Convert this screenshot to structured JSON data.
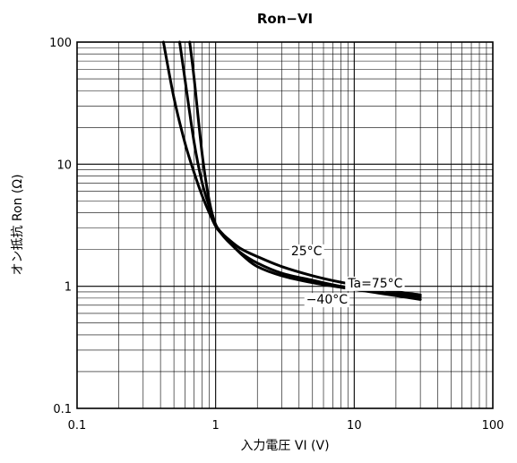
{
  "chart_data": {
    "type": "line",
    "title": "Ron−VI",
    "xlabel": "入力電圧 VI (V)",
    "ylabel": "オン抵抗 Ron (Ω)",
    "xscale": "log",
    "yscale": "log",
    "xlim": [
      0.1,
      100
    ],
    "ylim": [
      0.1,
      100
    ],
    "grid": true,
    "x_ticks": [
      {
        "value": 0.1,
        "label": "0.1"
      },
      {
        "value": 1,
        "label": "1"
      },
      {
        "value": 10,
        "label": "10"
      },
      {
        "value": 100,
        "label": "100"
      }
    ],
    "y_ticks": [
      {
        "value": 0.1,
        "label": "0.1"
      },
      {
        "value": 1,
        "label": "1"
      },
      {
        "value": 10,
        "label": "10"
      },
      {
        "value": 100,
        "label": "100"
      }
    ],
    "series": [
      {
        "name": "Ta=75°C",
        "x": [
          0.42,
          0.5,
          0.6,
          0.7,
          0.8,
          0.9,
          1.0,
          1.1,
          1.3,
          1.6,
          2,
          3,
          5,
          8,
          15,
          30
        ],
        "y": [
          100,
          35,
          15,
          8.5,
          5.5,
          4.0,
          3.1,
          2.7,
          2.2,
          1.75,
          1.45,
          1.22,
          1.07,
          0.98,
          0.88,
          0.78
        ]
      },
      {
        "name": "25°C",
        "x": [
          0.55,
          0.6,
          0.7,
          0.8,
          0.9,
          1.0,
          1.1,
          1.2,
          1.5,
          2,
          3,
          5,
          8,
          15,
          30
        ],
        "y": [
          100,
          50,
          15,
          7,
          4.5,
          3.2,
          2.75,
          2.5,
          2.05,
          1.75,
          1.45,
          1.22,
          1.08,
          0.95,
          0.85
        ]
      },
      {
        "name": "−40°C",
        "x": [
          0.65,
          0.7,
          0.8,
          0.9,
          1.0,
          1.1,
          1.2,
          1.5,
          2,
          3,
          5,
          8,
          15,
          30
        ],
        "y": [
          100,
          50,
          12,
          5,
          3.2,
          2.7,
          2.4,
          1.9,
          1.55,
          1.28,
          1.12,
          1.0,
          0.9,
          0.82
        ]
      }
    ],
    "annotations": [
      {
        "text": "25°C",
        "x": 3.5,
        "y": 1.8
      },
      {
        "text": "Ta=75°C",
        "x": 9,
        "y": 0.98
      },
      {
        "text": "−40°C",
        "x": 4.5,
        "y": 0.72
      }
    ]
  }
}
